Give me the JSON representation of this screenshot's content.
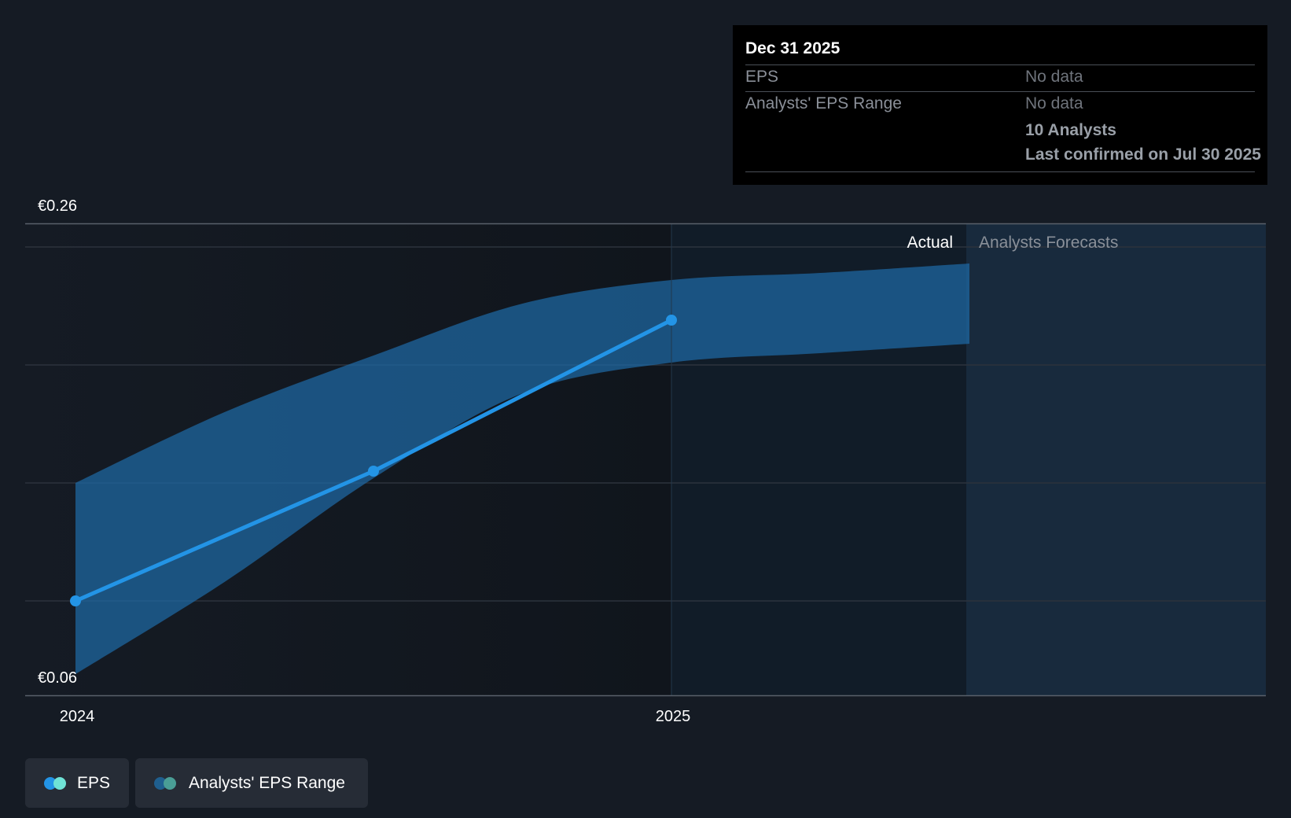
{
  "chart_data": {
    "type": "line",
    "y_axis": {
      "top_label": "€0.26",
      "bottom_label": "€0.06",
      "ylim": [
        0.06,
        0.26
      ]
    },
    "x_axis": {
      "tick_labels": [
        "2024",
        "2025"
      ]
    },
    "grid": true,
    "regions": {
      "actual_label": "Actual",
      "forecast_label": "Analysts Forecasts"
    },
    "series": [
      {
        "name": "EPS",
        "type": "line",
        "color": "#2394e6",
        "points": [
          {
            "x": 2024.0,
            "y": 0.1
          },
          {
            "x": 2024.5,
            "y": 0.155
          },
          {
            "x": 2025.0,
            "y": 0.219
          }
        ]
      },
      {
        "name": "Analysts' EPS Range",
        "type": "range",
        "color": "#1f6aa5",
        "points": [
          {
            "x": 2024.0,
            "low": 0.069,
            "high": 0.15
          },
          {
            "x": 2024.25,
            "low": 0.108,
            "high": 0.18
          },
          {
            "x": 2024.5,
            "low": 0.152,
            "high": 0.204
          },
          {
            "x": 2024.75,
            "low": 0.188,
            "high": 0.226
          },
          {
            "x": 2025.0,
            "low": 0.201,
            "high": 0.236
          },
          {
            "x": 2025.25,
            "low": 0.205,
            "high": 0.239
          },
          {
            "x": 2025.5,
            "low": 0.209,
            "high": 0.243
          }
        ]
      }
    ]
  },
  "tooltip": {
    "title": "Dec 31 2025",
    "rows": [
      {
        "label": "EPS",
        "value": "No data"
      },
      {
        "label": "Analysts' EPS Range",
        "value": "No data"
      }
    ],
    "analysts": "10 Analysts",
    "last_confirmed": "Last confirmed on Jul 30 2025"
  },
  "legend": {
    "items": [
      {
        "label": "EPS",
        "color_a": "#2394e6",
        "color_b": "#6fe3d6"
      },
      {
        "label": "Analysts' EPS Range",
        "color_a": "#1f5f8f",
        "color_b": "#4a9e96"
      }
    ]
  }
}
